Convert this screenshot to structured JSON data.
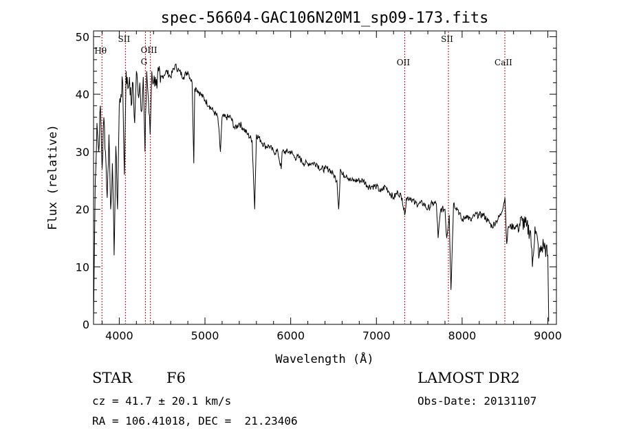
{
  "chart_data": {
    "type": "line",
    "title": "spec-56604-GAC106N20M1_sp09-173.fits",
    "xlabel": "Wavelength (Å)",
    "ylabel": "Flux (relative)",
    "xlim": [
      3700,
      9100
    ],
    "ylim": [
      0,
      51
    ],
    "xticks": [
      4000,
      5000,
      6000,
      7000,
      8000,
      9000
    ],
    "yticks": [
      0,
      10,
      20,
      30,
      40,
      50
    ],
    "grid": false,
    "line_color": "#000000",
    "marker_color": "#cc0000",
    "line_markers": [
      {
        "label": "Hθ",
        "x": 3798,
        "line": true
      },
      {
        "label": "SII",
        "x": 4072,
        "line": true
      },
      {
        "label": "OIII",
        "x": 4363,
        "line": true
      },
      {
        "label": "G",
        "x": 4305,
        "line": true
      },
      {
        "label": "OII",
        "x": 7330,
        "line": true
      },
      {
        "label": "SII",
        "x": 7840,
        "line": true
      },
      {
        "label": "CaII",
        "x": 8498,
        "line": true
      }
    ],
    "series": [
      {
        "x": [
          3700,
          3720,
          3740,
          3760,
          3780,
          3800,
          3820,
          3840,
          3860,
          3880,
          3900,
          3920,
          3940,
          3960,
          3980,
          4000,
          4020,
          4040,
          4060,
          4080,
          4100,
          4120,
          4140,
          4160,
          4180,
          4200,
          4220,
          4240,
          4260,
          4280,
          4300,
          4320,
          4340,
          4360,
          4380,
          4400,
          4420,
          4440,
          4460,
          4480,
          4500,
          4550,
          4600,
          4650,
          4700,
          4750,
          4800,
          4850,
          4870,
          4880,
          4900,
          4950,
          5000,
          5050,
          5100,
          5150,
          5180,
          5200,
          5250,
          5300,
          5350,
          5400,
          5450,
          5500,
          5550,
          5580,
          5600,
          5650,
          5700,
          5750,
          5800,
          5850,
          5890,
          5900,
          5950,
          6000,
          6050,
          6100,
          6150,
          6200,
          6250,
          6300,
          6350,
          6400,
          6450,
          6500,
          6540,
          6560,
          6580,
          6600,
          6650,
          6700,
          6750,
          6800,
          6850,
          6900,
          6950,
          7000,
          7050,
          7100,
          7150,
          7200,
          7250,
          7300,
          7330,
          7350,
          7400,
          7450,
          7500,
          7550,
          7600,
          7650,
          7700,
          7720,
          7750,
          7800,
          7820,
          7850,
          7870,
          7900,
          7950,
          8000,
          8050,
          8100,
          8150,
          8200,
          8250,
          8300,
          8350,
          8400,
          8450,
          8500,
          8520,
          8540,
          8600,
          8650,
          8700,
          8750,
          8800,
          8820,
          8850,
          8900,
          8950,
          9000,
          9010
        ],
        "y": [
          0.5,
          25,
          35,
          30,
          38,
          27,
          36,
          30,
          22,
          33,
          20,
          28,
          12,
          31,
          20,
          38,
          40,
          42,
          26,
          44,
          41,
          43,
          38,
          42,
          35,
          44,
          40,
          42,
          37,
          43,
          30,
          44,
          39,
          33,
          44,
          42,
          43,
          41,
          44,
          42,
          43,
          44,
          43,
          45,
          44,
          43,
          44,
          42,
          28,
          41,
          41,
          40,
          39,
          38,
          37,
          36,
          30,
          36,
          36,
          36,
          34,
          35,
          34,
          33,
          32,
          20,
          33,
          32,
          31,
          31,
          30,
          30,
          27,
          30,
          30,
          30,
          29,
          29,
          28,
          28,
          28,
          28,
          27,
          27,
          27,
          26,
          25,
          20,
          27,
          26,
          26,
          25,
          25,
          25,
          25,
          24,
          24,
          24,
          23,
          24,
          23,
          22,
          23,
          22,
          19,
          22,
          22,
          21,
          21,
          21,
          20,
          21,
          21,
          15,
          20,
          20,
          15,
          19,
          6,
          21,
          20,
          18,
          19,
          18,
          19,
          19,
          19,
          18,
          17,
          18,
          19,
          22,
          14,
          17,
          17,
          17,
          18,
          17,
          16,
          10,
          17,
          12,
          14,
          12,
          0.5
        ]
      }
    ]
  },
  "info": {
    "object_class": "STAR",
    "subclass": "F6",
    "survey": "LAMOST DR2",
    "redshift_text": "cz = 41.7 ± 20.1 km/s",
    "obs_date_text": "Obs-Date: 20131107",
    "coords_text": "RA = 106.41018, DEC =  21.23406"
  }
}
